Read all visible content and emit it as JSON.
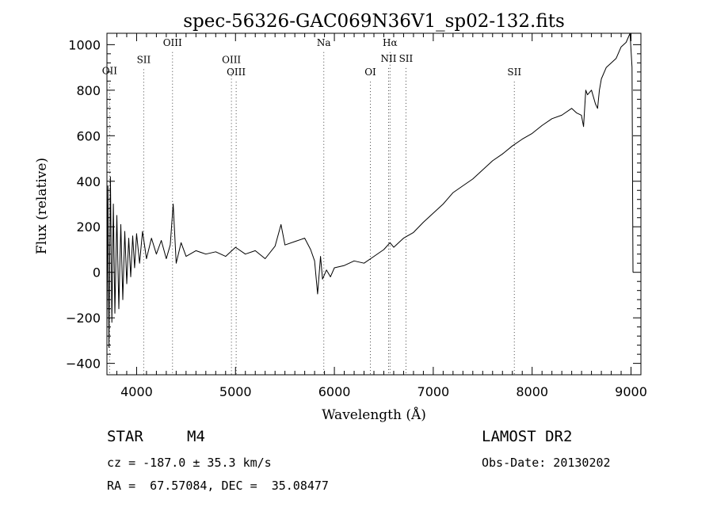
{
  "chart_data": {
    "type": "line",
    "title": "spec-56326-GAC069N36V1_sp02-132.fits",
    "xlabel": "Wavelength (Å)",
    "ylabel": "Flux (relative)",
    "xlim": [
      3700,
      9100
    ],
    "ylim": [
      -450,
      1050
    ],
    "xticks": [
      4000,
      5000,
      6000,
      7000,
      8000,
      9000
    ],
    "yticks": [
      -400,
      -200,
      0,
      200,
      400,
      600,
      800,
      1000
    ],
    "grid": false,
    "line_color": "#000000",
    "series": [
      {
        "x": [
          3700,
          3710,
          3720,
          3735,
          3750,
          3765,
          3780,
          3800,
          3820,
          3840,
          3860,
          3880,
          3900,
          3920,
          3940,
          3960,
          3980,
          4000,
          4030,
          4060,
          4100,
          4150,
          4200,
          4250,
          4300,
          4340,
          4370,
          4400,
          4450,
          4500,
          4600,
          4700,
          4800,
          4900,
          5000,
          5100,
          5200,
          5300,
          5400,
          5460,
          5500,
          5600,
          5700,
          5760,
          5800,
          5830,
          5860,
          5880,
          5920,
          5960,
          6000,
          6100,
          6200,
          6300,
          6400,
          6500,
          6563,
          6600,
          6700,
          6800,
          6900,
          7000,
          7100,
          7200,
          7300,
          7400,
          7500,
          7600,
          7700,
          7800,
          7900,
          8000,
          8100,
          8200,
          8300,
          8400,
          8450,
          8498,
          8520,
          8542,
          8560,
          8600,
          8640,
          8662,
          8680,
          8700,
          8750,
          8800,
          8850,
          8900,
          8950,
          8990,
          9010,
          9020
        ],
        "y": [
          -250,
          380,
          -330,
          420,
          -220,
          300,
          -180,
          250,
          -160,
          210,
          -120,
          180,
          -50,
          150,
          -20,
          160,
          20,
          170,
          40,
          180,
          60,
          150,
          80,
          140,
          60,
          120,
          300,
          40,
          130,
          70,
          95,
          80,
          90,
          70,
          110,
          80,
          95,
          60,
          115,
          210,
          120,
          135,
          150,
          100,
          50,
          -95,
          70,
          -30,
          10,
          -20,
          20,
          30,
          50,
          40,
          70,
          100,
          130,
          110,
          150,
          175,
          220,
          260,
          300,
          350,
          380,
          410,
          450,
          490,
          520,
          555,
          585,
          610,
          645,
          675,
          690,
          720,
          700,
          690,
          640,
          800,
          780,
          800,
          740,
          720,
          800,
          850,
          900,
          920,
          940,
          990,
          1010,
          1050,
          900,
          0
        ]
      }
    ],
    "annotations": [
      {
        "label": "OII",
        "x": 3727,
        "y": 870
      },
      {
        "label": "SII",
        "x": 4072,
        "y": 920
      },
      {
        "label": "OIII",
        "x": 4363,
        "y": 995
      },
      {
        "label": "OIII",
        "x": 4959,
        "y": 920
      },
      {
        "label": "OIII",
        "x": 5007,
        "y": 865
      },
      {
        "label": "Na",
        "x": 5893,
        "y": 995
      },
      {
        "label": "OI",
        "x": 6364,
        "y": 865
      },
      {
        "label": "Hα",
        "x": 6563,
        "y": 995
      },
      {
        "label": "NII",
        "x": 6548,
        "y": 925
      },
      {
        "label": "SII",
        "x": 6724,
        "y": 925
      },
      {
        "label": "SII",
        "x": 7820,
        "y": 865
      }
    ]
  },
  "info": {
    "object_type": "STAR",
    "subclass": "M4",
    "survey": "LAMOST DR2",
    "cz": "cz = -187.0 ± 35.3 km/s",
    "obs_date": "Obs-Date: 20130202",
    "coords": "RA =  67.57084, DEC =  35.08477"
  }
}
